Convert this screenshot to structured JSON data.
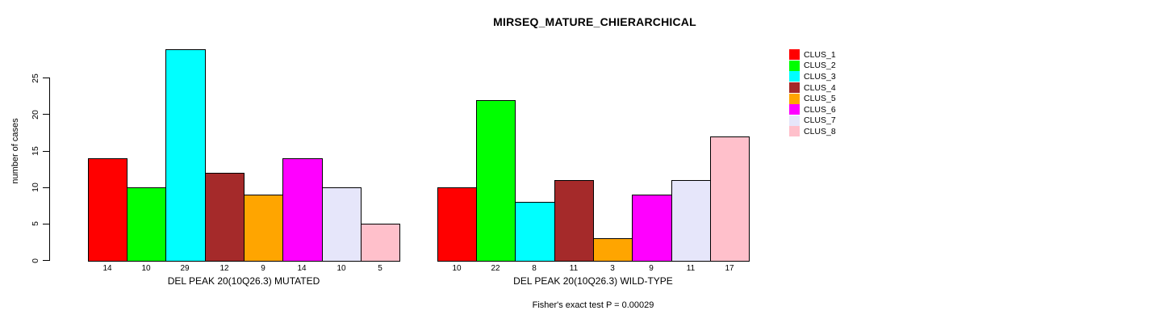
{
  "chart_data": {
    "type": "bar",
    "title": "MIRSEQ_MATURE_CHIERARCHICAL",
    "ylabel": "number of cases",
    "yticks": [
      0,
      5,
      10,
      15,
      20,
      25
    ],
    "ylim": [
      0,
      29
    ],
    "grid": false,
    "legend_position": "top-right",
    "legend": [
      {
        "label": "CLUS_1",
        "color": "#FF0000"
      },
      {
        "label": "CLUS_2",
        "color": "#00FF00"
      },
      {
        "label": "CLUS_3",
        "color": "#00FFFF"
      },
      {
        "label": "CLUS_4",
        "color": "#A52A2A"
      },
      {
        "label": "CLUS_5",
        "color": "#FFA500"
      },
      {
        "label": "CLUS_6",
        "color": "#FF00FF"
      },
      {
        "label": "CLUS_7",
        "color": "#E6E6FA"
      },
      {
        "label": "CLUS_8",
        "color": "#FFC0CB"
      }
    ],
    "groups": [
      {
        "xlabel": "DEL PEAK 20(10Q26.3) MUTATED",
        "values": [
          14,
          10,
          29,
          12,
          9,
          14,
          10,
          5
        ]
      },
      {
        "xlabel": "DEL PEAK 20(10Q26.3) WILD-TYPE",
        "values": [
          10,
          22,
          8,
          11,
          3,
          9,
          11,
          17
        ]
      }
    ],
    "annotation": "Fisher's exact test P = 0.00029",
    "bar_border_color": "#000000",
    "background_color": "#FFFFFF"
  }
}
